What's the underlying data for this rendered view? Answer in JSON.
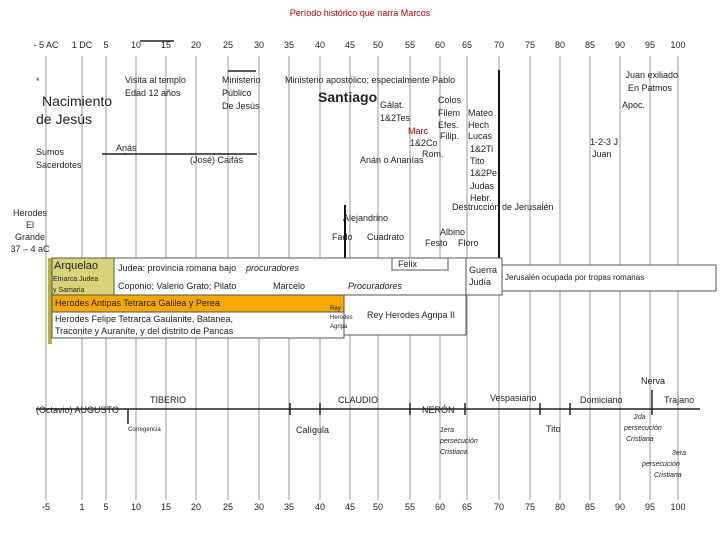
{
  "title": "Período histórico que narra Marcos",
  "axis_top": [
    "- 5 AC",
    "1 DC",
    "5",
    "10",
    "15",
    "20",
    "25",
    "30",
    "35",
    "40",
    "45",
    "50",
    "55",
    "60",
    "65",
    "70",
    "75",
    "80",
    "85",
    "90",
    "95",
    "100"
  ],
  "axis_bottom": [
    "-5",
    "1",
    "5",
    "10",
    "15",
    "20",
    "25",
    "30",
    "35",
    "40",
    "45",
    "50",
    "55",
    "60",
    "65",
    "70",
    "75",
    "80",
    "85",
    "90",
    "95",
    "100"
  ],
  "labels": [
    "*",
    "Nacimiento",
    "de Jesús",
    "Visita al templo",
    "Edad 12 años",
    "Ministerio",
    "Público",
    "De Jesús",
    "Ministerio apostólico; especialmente Pablo",
    "Juan exiliado",
    "En Patmos",
    "Santiago",
    "Gálat.",
    "1&2Tes",
    "Colos",
    "Filem",
    "Efes.",
    "Filip.",
    "Mateo",
    "Hech",
    "Lucas",
    "1&2Ti",
    "Tito",
    "1&2Pe",
    "Judas",
    "Hebr.",
    "Marc",
    "1&2Co",
    "Rom.",
    "Anán o Ananías",
    "Apoc.",
    "1-2-3 J",
    "Juan",
    "Sumos",
    "Sacerdotes",
    "Anás",
    "(José) Caifás",
    "Destrucción de Jerusalén",
    "Herodes",
    "El",
    "Grande",
    "37 – 4 aC",
    "Alejandrino",
    "Fado",
    "Cuadrato",
    "Albino",
    "Festo",
    "Floro",
    "Felix",
    "Arquelao",
    "Etnarca Judea",
    "y Samaria",
    "Judea: provincia romana bajo",
    "procuradores",
    "Coponio; Valerio Grato;  Pilato",
    "Marcelo",
    "Procuradores",
    "Guerra",
    "Judía",
    "Jerusalén ocupada por tropas romanas",
    "Herodes Antipas Tetrarca Galilea y Perea",
    "Rey",
    "Herodes",
    "Agripa",
    "Rey Herodes Agripa II",
    "Herodes Felipe Tetrarca Gaulanite, Batanea,",
    "Traconite y Auraníte, y del distrito de Pancas",
    "Nerva",
    "TIBERIO",
    "CLAUDIO",
    "Vespasiano",
    "Domiciano",
    "Trajano",
    "(Octavio) AUGUSTO",
    "NERÓN",
    "Corregencia",
    "Calígula",
    "Tito",
    "1era",
    "persecución",
    "Cristiana",
    "2da",
    "persecución",
    "Cristiana",
    "3era",
    "persecución",
    "Cristiana"
  ]
}
